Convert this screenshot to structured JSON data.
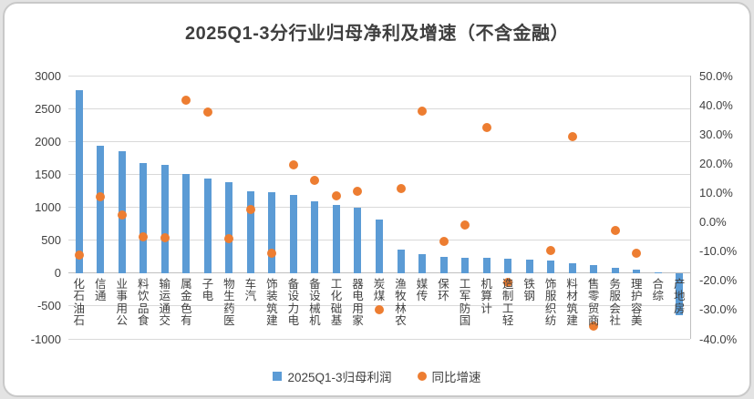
{
  "chart_data": {
    "type": "bar",
    "title": "2025Q1-3分行业归母净利及增速（不含金融）",
    "legend_position": "bottom",
    "grid": true,
    "categories": [
      "石油石化",
      "通信",
      "公用事业",
      "食品饮料",
      "交通运输",
      "有色金属",
      "电子",
      "医药生物",
      "汽车",
      "建筑装饰",
      "电力设备",
      "机械设备",
      "基础化工",
      "家用电器",
      "煤炭",
      "农林牧渔",
      "传媒",
      "环保",
      "国防军工",
      "计算机",
      "轻工制造",
      "钢铁",
      "纺织服饰",
      "建筑材料",
      "商贸零售",
      "社会服务",
      "美容护理",
      "综合",
      "房地产"
    ],
    "series": [
      {
        "name": "2025Q1-3归母利润",
        "type": "bar",
        "axis": "left",
        "color": "#5b9bd5",
        "values": [
          2780,
          1930,
          1855,
          1670,
          1640,
          1500,
          1440,
          1380,
          1240,
          1230,
          1180,
          1090,
          1040,
          1000,
          820,
          350,
          290,
          245,
          235,
          225,
          215,
          205,
          190,
          155,
          120,
          75,
          45,
          10,
          -640
        ]
      },
      {
        "name": "同比增速",
        "type": "scatter",
        "axis": "right",
        "color": "#ed7d31",
        "values_pct": [
          -11.5,
          8.7,
          2.4,
          -5.0,
          -5.4,
          41.6,
          37.5,
          -5.6,
          4.1,
          -10.8,
          19.5,
          14.1,
          9.0,
          10.3,
          -29.9,
          11.4,
          37.7,
          -6.6,
          -1.1,
          32.1,
          -20.8,
          null,
          -9.8,
          29.0,
          -35.5,
          -2.8,
          -10.8,
          null,
          null
        ]
      }
    ],
    "left_axis": {
      "min": -1000,
      "max": 3000,
      "tick_values": [
        3000,
        2500,
        2000,
        1500,
        1000,
        500,
        0,
        -500,
        -1000
      ],
      "tick_labels": [
        "3000",
        "2500",
        "2000",
        "1500",
        "1000",
        "500",
        "0",
        "-500",
        "-1000"
      ]
    },
    "right_axis": {
      "min": -40,
      "max": 50,
      "tick_values": [
        50,
        40,
        30,
        20,
        10,
        0,
        -10,
        -20,
        -30,
        -40
      ],
      "tick_labels": [
        "50.0%",
        "40.0%",
        "30.0%",
        "20.0%",
        "10.0%",
        "0.0%",
        "-10.0%",
        "-20.0%",
        "-30.0%",
        "-40.0%"
      ]
    }
  }
}
